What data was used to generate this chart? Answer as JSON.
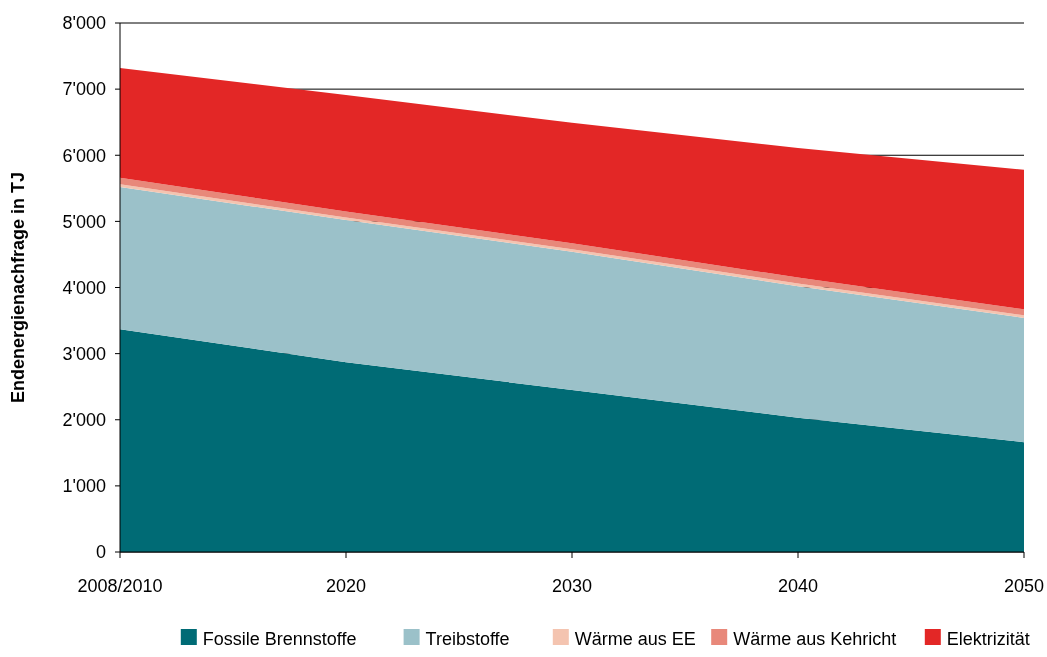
{
  "chart_data": {
    "type": "area",
    "stacked": true,
    "ylabel": "Endenergienachfrage in TJ",
    "categories": [
      "2008/2010",
      "2020",
      "2030",
      "2040",
      "2050"
    ],
    "ylim": [
      0,
      8000
    ],
    "yticks": [
      0,
      {
        "value": 1000,
        "label": "1'000"
      },
      {
        "value": 2000,
        "label": "2'000"
      },
      {
        "value": 3000,
        "label": "3'000"
      },
      {
        "value": 4000,
        "label": "4'000"
      },
      {
        "value": 5000,
        "label": "5'000"
      },
      {
        "value": 6000,
        "label": "6'000"
      },
      {
        "value": 7000,
        "label": "7'000"
      },
      {
        "value": 8000,
        "label": "8'000"
      }
    ],
    "grid": "y",
    "legend": "bottom",
    "series": [
      {
        "name": "Fossile Brennstoffe",
        "color": "#006b75",
        "values": [
          3370,
          2870,
          2450,
          2030,
          1660
        ]
      },
      {
        "name": "Treibstoffe",
        "color": "#9bc1c9",
        "values": [
          2150,
          2150,
          2090,
          1990,
          1880
        ]
      },
      {
        "name": "Wärme aus EE",
        "color": "#f4c4b0",
        "values": [
          40,
          40,
          40,
          40,
          40
        ]
      },
      {
        "name": "Wärme aus Kehricht",
        "color": "#e8887a",
        "values": [
          100,
          90,
          90,
          90,
          90
        ]
      },
      {
        "name": "Elektrizität",
        "color": "#e32726",
        "values": [
          1660,
          1760,
          1820,
          1960,
          2110
        ]
      }
    ]
  }
}
